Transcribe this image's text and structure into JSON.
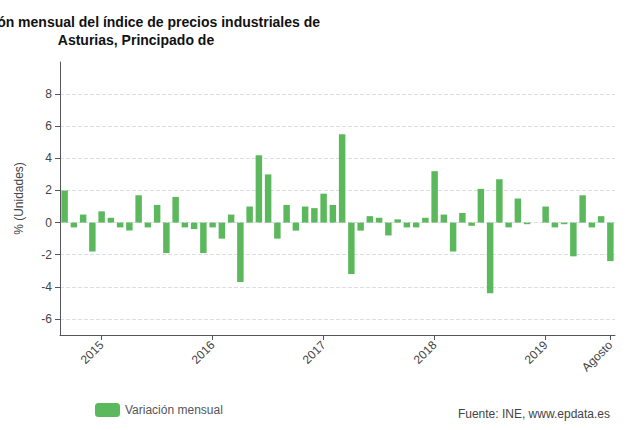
{
  "chart_data": {
    "type": "bar",
    "title": "Variación mensual del índice de precios industriales de\nAsturias, Principado de",
    "ylabel": "% (Unidades)",
    "annotations": [
      "Fuente: INE, www.epdata.es"
    ],
    "categories": [
      null,
      null,
      null,
      null,
      "2015",
      null,
      null,
      null,
      null,
      null,
      null,
      null,
      null,
      null,
      null,
      null,
      "2016",
      null,
      null,
      null,
      null,
      null,
      null,
      null,
      null,
      null,
      null,
      null,
      "2017",
      null,
      null,
      null,
      null,
      null,
      null,
      null,
      null,
      null,
      null,
      null,
      "2018",
      null,
      null,
      null,
      null,
      null,
      null,
      null,
      null,
      null,
      null,
      null,
      "2019",
      null,
      null,
      null,
      null,
      null,
      null,
      "Agosto"
    ],
    "series": [
      {
        "name": "Variación mensual",
        "color": "#5cb85c",
        "values": [
          2.0,
          -0.3,
          0.5,
          -1.8,
          0.7,
          0.3,
          -0.3,
          -0.5,
          1.7,
          -0.3,
          1.1,
          -1.9,
          1.6,
          -0.3,
          -0.4,
          -1.9,
          -0.3,
          -1.0,
          0.5,
          -3.7,
          1.0,
          4.2,
          3.0,
          -1.0,
          1.1,
          -0.5,
          1.0,
          0.9,
          1.8,
          1.1,
          5.5,
          -3.2,
          -0.5,
          0.4,
          0.3,
          -0.8,
          0.2,
          -0.3,
          -0.3,
          0.3,
          3.2,
          0.5,
          -1.8,
          0.6,
          -0.2,
          2.1,
          -4.4,
          2.7,
          -0.3,
          1.5,
          -0.1,
          0.0,
          1.0,
          -0.3,
          -0.1,
          -2.1,
          1.7,
          -0.3,
          0.4,
          -2.4
        ]
      }
    ],
    "ylim": [
      -7,
      10
    ],
    "yticks": [
      -6,
      -4,
      -2,
      0,
      2,
      4,
      6,
      8
    ],
    "grid": true,
    "legend": "bottom"
  }
}
